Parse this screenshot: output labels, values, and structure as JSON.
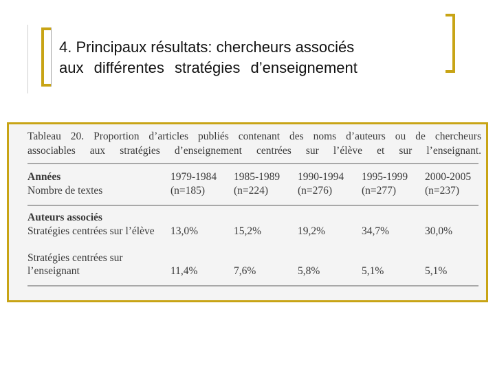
{
  "slide": {
    "title_line1": "4. Principaux résultats: chercheurs associés",
    "title_line2": "aux différentes stratégies d’enseignement"
  },
  "table": {
    "caption_line1": "Tableau 20. Proportion d’articles publiés contenant des noms d’auteurs ou de chercheurs",
    "caption_line2": "associables aux stratégies d’enseignement centrées sur l’élève et sur l’enseignant.",
    "row_years_label": "Années",
    "row_count_label": "Nombre de textes",
    "years": [
      "1979-1984",
      "1985-1989",
      "1990-1994",
      "1995-1999",
      "2000-2005"
    ],
    "counts": [
      "(n=185)",
      "(n=224)",
      "(n=276)",
      "(n=277)",
      "(n=237)"
    ],
    "section_label": "Auteurs associés",
    "student_label": "Stratégies centrées sur l’élève",
    "student_values": [
      "13,0%",
      "15,2%",
      "19,2%",
      "34,7%",
      "30,0%"
    ],
    "teacher_label_line1": "Stratégies centrées sur",
    "teacher_label_line2": "l’enseignant",
    "teacher_values": [
      "11,4%",
      "7,6%",
      "5,8%",
      "5,1%",
      "5,1%"
    ]
  },
  "colors": {
    "accent": "#c8a415",
    "rule": "#a8a8a8",
    "text": "#3a3a3a",
    "table_bg": "#f4f4f4"
  }
}
